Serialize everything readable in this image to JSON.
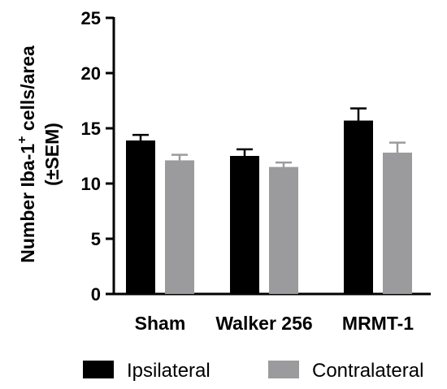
{
  "chart_data": {
    "type": "bar",
    "categories": [
      "Sham",
      "Walker 256",
      "MRMT-1"
    ],
    "series": [
      {
        "name": "Ipsilateral",
        "color": "#000000",
        "values": [
          13.9,
          12.5,
          15.7
        ],
        "errors": [
          0.5,
          0.6,
          1.1
        ]
      },
      {
        "name": "Contralateral",
        "color": "#9b9b9d",
        "values": [
          12.1,
          11.5,
          12.8
        ],
        "errors": [
          0.5,
          0.4,
          0.9
        ]
      }
    ],
    "ylabel_line1": "Number Iba-1",
    "ylabel_sup": "+",
    "ylabel_line1_end": " cells/area",
    "ylabel_line2": "(±SEM)",
    "ylim": [
      0,
      25
    ],
    "yticks": [
      0,
      5,
      10,
      15,
      20,
      25
    ],
    "legend_position": "bottom"
  }
}
